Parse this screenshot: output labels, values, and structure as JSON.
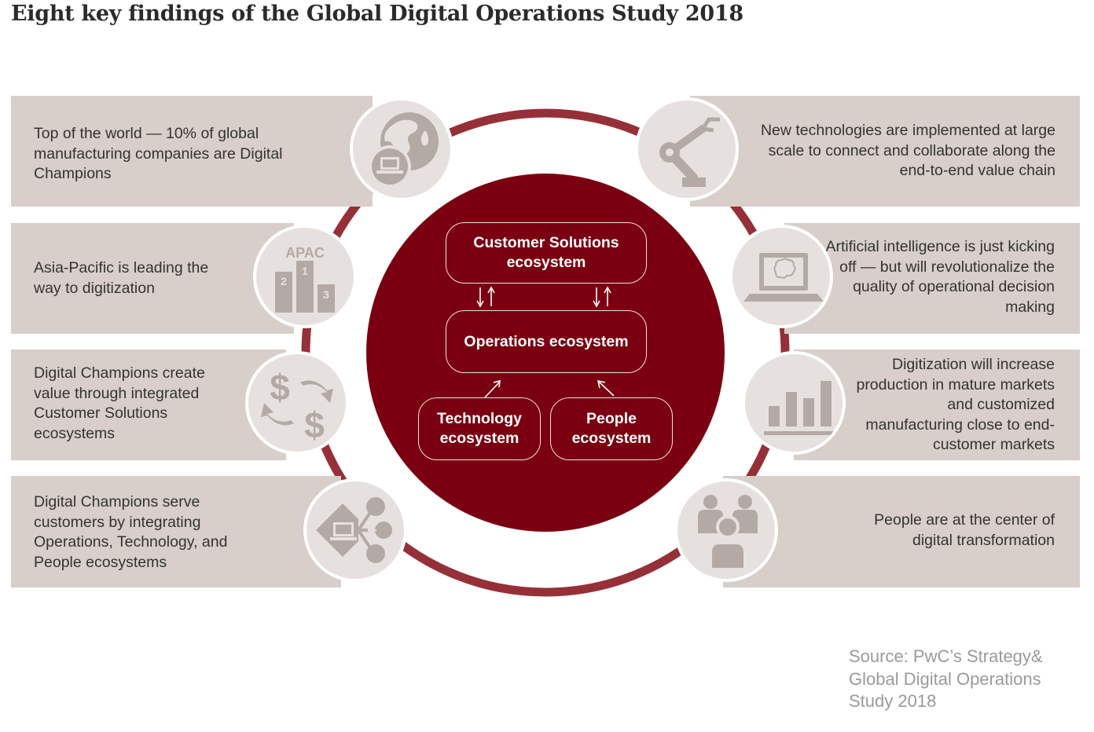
{
  "title": "Eight key findings of the Global Digital Operations Study 2018",
  "colors": {
    "ring": "#963038",
    "core": "#7a0011",
    "panel": "#d8cfca",
    "icon_bg": "#e6e1df",
    "icon_fg": "#b3aaa6"
  },
  "findings": {
    "left": [
      {
        "text": "Top of the world — 10% of global manufacturing companies are Digital Champions",
        "icon": "globe-laptop-icon"
      },
      {
        "text": "Asia-Pacific is leading the way to digitization",
        "icon": "apac-podium-icon",
        "icon_label": "APAC",
        "ranks": [
          "2",
          "1",
          "3"
        ]
      },
      {
        "text": "Digital Champions create value through integrated Customer Solutions ecosystems",
        "icon": "dollar-exchange-icon"
      },
      {
        "text": "Digital Champions serve customers by integrating Operations, Technology, and People ecosystems",
        "icon": "laptop-network-icon"
      }
    ],
    "right": [
      {
        "text": "New technologies are implemented at large scale to connect and collaborate along the end-to-end value chain",
        "icon": "robot-arm-icon"
      },
      {
        "text": "Artificial intelligence is just kicking off — but will revolutionalize the quality of operational decision making",
        "icon": "laptop-brain-icon"
      },
      {
        "text": "Digitization will increase production in mature markets and customized manufacturing close to end-customer markets",
        "icon": "bar-chart-icon"
      },
      {
        "text": "People are at the center of digital transformation",
        "icon": "people-group-icon"
      }
    ]
  },
  "ecosystems": {
    "customer": "Customer Solutions ecosystem",
    "operations": "Operations ecosystem",
    "technology": "Technology ecosystem",
    "people": "People ecosystem"
  },
  "source": "Source: PwC’s Strategy& Global Digital Operations Study 2018"
}
